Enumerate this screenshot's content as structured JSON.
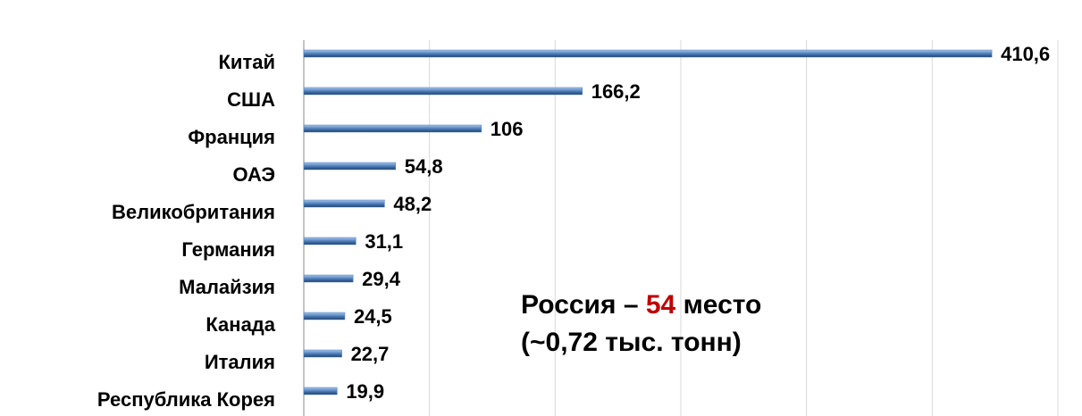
{
  "chart_data": {
    "type": "barh",
    "categories": [
      "Китай",
      "США",
      "Франция",
      "ОАЭ",
      "Великобритания",
      "Германия",
      "Малайзия",
      "Канада",
      "Италия",
      "Республика Корея"
    ],
    "values": [
      410.6,
      166.2,
      106,
      54.8,
      48.2,
      31.1,
      29.4,
      24.5,
      22.7,
      19.9
    ],
    "value_labels": [
      "410,6",
      "166,2",
      "106",
      "54,8",
      "48,2",
      "31,1",
      "29,4",
      "24,5",
      "22,7",
      "19,9"
    ],
    "color": "#4f81bd",
    "xlim": [
      0,
      450
    ],
    "xticks": [
      0,
      75,
      150,
      225,
      300,
      375,
      450
    ],
    "grid": true,
    "annotation": {
      "prefix": "Россия –",
      "highlight": "54",
      "suffix": "место",
      "line2": "(~0,72 тыс. тонн)",
      "highlight_color": "#c00000"
    }
  }
}
